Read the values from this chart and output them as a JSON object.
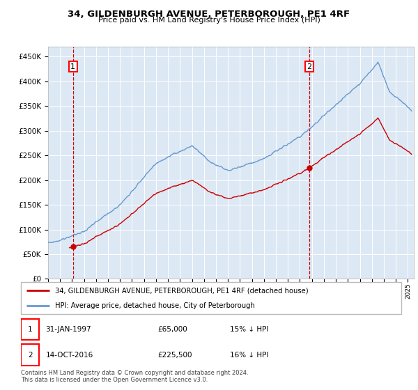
{
  "title": "34, GILDENBURGH AVENUE, PETERBOROUGH, PE1 4RF",
  "subtitle": "Price paid vs. HM Land Registry's House Price Index (HPI)",
  "sale1_date_num": 1997.08,
  "sale1_price": 65000,
  "sale2_date_num": 2016.79,
  "sale2_price": 225500,
  "hpi_color": "#6699cc",
  "price_color": "#cc0000",
  "dashed_color": "#cc0000",
  "bg_color": "#dde8f5",
  "legend_label1": "34, GILDENBURGH AVENUE, PETERBOROUGH, PE1 4RF (detached house)",
  "legend_label2": "HPI: Average price, detached house, City of Peterborough",
  "footer": "Contains HM Land Registry data © Crown copyright and database right 2024.\nThis data is licensed under the Open Government Licence v3.0.",
  "ylim_max": 470000,
  "xlim_start": 1995.0,
  "xlim_end": 2025.5
}
